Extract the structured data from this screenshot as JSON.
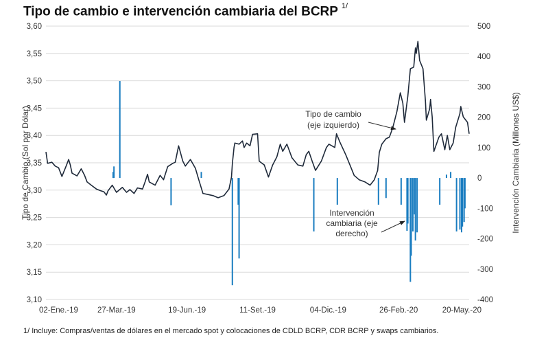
{
  "chart_data": {
    "type": "line+bar",
    "title": "Tipo de cambio e intervención cambiaria del BCRP",
    "title_note": "1/",
    "footnote": "1/ Incluye: Compras/ventas de dólares en el mercado spot y colocaciones de CDLD BCRP, CDR BCRP y swaps cambiarios.",
    "ylabel_left": "Tipo de Cambio (Sol por Dólar)",
    "ylabel_right": "Intervención Cambiaria (Millones US$)",
    "ylim_left": [
      3.1,
      3.6
    ],
    "ylim_right": [
      -400,
      500
    ],
    "yticks_left": [
      "3,60",
      "3,55",
      "3,50",
      "3,45",
      "3,40",
      "3,35",
      "3,30",
      "3,25",
      "3,20",
      "3,15",
      "3,10"
    ],
    "yticks_right": [
      "500",
      "400",
      "300",
      "200",
      "100",
      "0",
      "-100",
      "-200",
      "-300",
      "-400"
    ],
    "x_unit": "days since 02-Ene-19",
    "xlim": [
      0,
      504
    ],
    "xticks": [
      {
        "day": 0,
        "label": "02-Ene.-19"
      },
      {
        "day": 84,
        "label": "27-Mar.-19"
      },
      {
        "day": 168,
        "label": "19-Jun.-19"
      },
      {
        "day": 252,
        "label": "11-Set.-19"
      },
      {
        "day": 336,
        "label": "04-Dic.-19"
      },
      {
        "day": 420,
        "label": "26-Feb.-20"
      },
      {
        "day": 504,
        "label": "20-May.-20"
      }
    ],
    "grid": true,
    "colors": {
      "line": "#1f2a3a",
      "bars": "#1a7dc0",
      "grid": "#d9d9d9"
    },
    "series_line": {
      "name": "Tipo de cambio (eje izquierdo)",
      "x": [
        0,
        2,
        7,
        11,
        15,
        19,
        24,
        27,
        29,
        31,
        37,
        42,
        46,
        49,
        54,
        60,
        65,
        69,
        72,
        74,
        79,
        84,
        91,
        96,
        100,
        105,
        109,
        115,
        118,
        121,
        123,
        130,
        136,
        140,
        145,
        151,
        154,
        158,
        163,
        166,
        172,
        178,
        182,
        187,
        193,
        199,
        205,
        212,
        218,
        221,
        222,
        224,
        225,
        230,
        234,
        236,
        239,
        243,
        246,
        252,
        254,
        260,
        265,
        270,
        275,
        279,
        282,
        287,
        293,
        300,
        306,
        310,
        313,
        317,
        321,
        328,
        334,
        337,
        344,
        346,
        350,
        357,
        362,
        367,
        373,
        380,
        386,
        391,
        395,
        397,
        400,
        405,
        409,
        413,
        418,
        422,
        425,
        427,
        431,
        434,
        438,
        440,
        441,
        443,
        445,
        449,
        452,
        453,
        457,
        458,
        460,
        462,
        468,
        471,
        475,
        478,
        481,
        485,
        488,
        493,
        494,
        497,
        502,
        504
      ],
      "y": [
        3.37,
        3.349,
        3.351,
        3.344,
        3.341,
        3.325,
        3.344,
        3.356,
        3.346,
        3.331,
        3.326,
        3.339,
        3.327,
        3.315,
        3.309,
        3.302,
        3.299,
        3.297,
        3.291,
        3.299,
        3.309,
        3.296,
        3.305,
        3.296,
        3.301,
        3.294,
        3.304,
        3.302,
        3.315,
        3.329,
        3.315,
        3.309,
        3.327,
        3.319,
        3.343,
        3.349,
        3.351,
        3.381,
        3.353,
        3.344,
        3.356,
        3.34,
        3.319,
        3.294,
        3.292,
        3.29,
        3.286,
        3.29,
        3.302,
        3.324,
        3.349,
        3.378,
        3.386,
        3.384,
        3.39,
        3.378,
        3.386,
        3.381,
        3.402,
        3.403,
        3.353,
        3.346,
        3.324,
        3.346,
        3.361,
        3.384,
        3.371,
        3.384,
        3.359,
        3.346,
        3.344,
        3.365,
        3.371,
        3.353,
        3.336,
        3.353,
        3.378,
        3.384,
        3.378,
        3.403,
        3.388,
        3.365,
        3.346,
        3.327,
        3.319,
        3.315,
        3.309,
        3.319,
        3.336,
        3.369,
        3.384,
        3.394,
        3.397,
        3.414,
        3.444,
        3.478,
        3.459,
        3.424,
        3.472,
        3.522,
        3.525,
        3.56,
        3.55,
        3.572,
        3.537,
        3.522,
        3.462,
        3.428,
        3.449,
        3.466,
        3.434,
        3.371,
        3.397,
        3.403,
        3.374,
        3.4,
        3.374,
        3.386,
        3.415,
        3.44,
        3.453,
        3.434,
        3.424,
        3.403
      ]
    },
    "series_bars": {
      "name": "Intervención cambiaria (eje derecho)",
      "x": [
        80,
        81,
        88,
        149,
        185,
        222,
        229,
        230,
        319,
        347,
        396,
        405,
        423,
        430,
        431,
        434,
        435,
        437,
        439,
        440,
        442,
        469,
        477,
        482,
        489,
        493,
        495,
        496,
        498,
        499
      ],
      "y": [
        20,
        38,
        319,
        -90,
        20,
        -353,
        -88,
        -265,
        -176,
        -88,
        -88,
        -66,
        -88,
        -174,
        -150,
        -342,
        -256,
        -176,
        -120,
        -206,
        -179,
        -88,
        11,
        20,
        -176,
        -170,
        -179,
        -160,
        -145,
        -100
      ]
    },
    "annotations": [
      {
        "text_lines": [
          "Tipo de cambio",
          "(eje izquierdo)"
        ],
        "target_series": "line"
      },
      {
        "text_lines": [
          "Intervención",
          "cambiaria (eje",
          "derecho)"
        ],
        "target_series": "bars"
      }
    ]
  }
}
